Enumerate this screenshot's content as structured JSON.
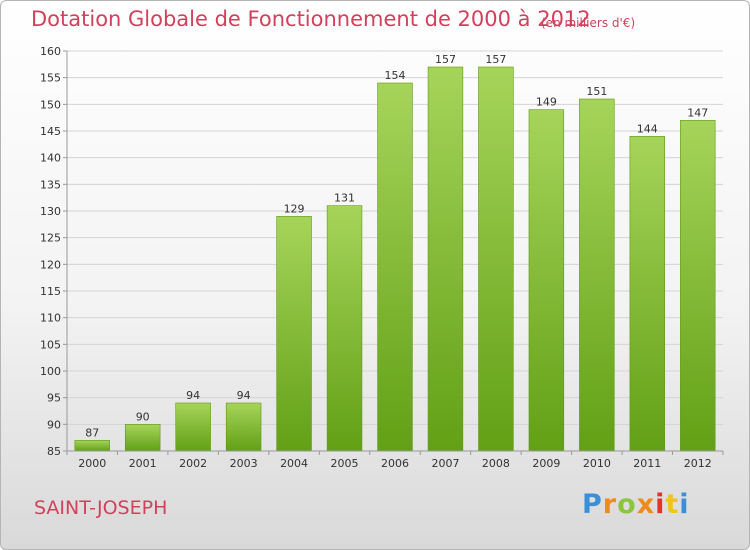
{
  "header": {
    "title": "Dotation Globale de Fonctionnement de 2000 à 2012",
    "unit": "(en milliers d'€)"
  },
  "footer": {
    "city": "SAINT-JOSEPH",
    "logo": "Proxiti"
  },
  "colors": {
    "title": "#d2415c",
    "bar_light": "#a6d45a",
    "bar_dark": "#62a016",
    "grid": "#d4d4d4"
  },
  "chart_data": {
    "type": "bar",
    "title": "Dotation Globale de Fonctionnement de 2000 à 2012",
    "xlabel": "",
    "ylabel": "",
    "ylim": [
      85,
      160
    ],
    "ytick_step": 5,
    "grid": true,
    "categories": [
      "2000",
      "2001",
      "2002",
      "2003",
      "2004",
      "2005",
      "2006",
      "2007",
      "2008",
      "2009",
      "2010",
      "2011",
      "2012"
    ],
    "values": [
      87,
      90,
      94,
      94,
      129,
      131,
      154,
      157,
      157,
      149,
      151,
      144,
      147
    ]
  }
}
